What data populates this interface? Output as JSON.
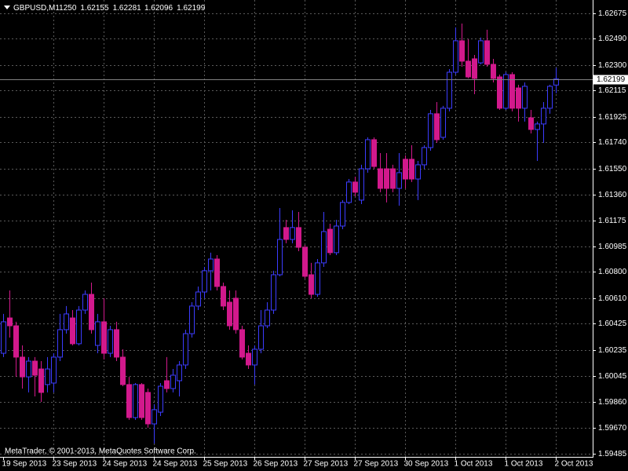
{
  "chart_data": {
    "type": "candlestick",
    "title": "GBPUSD,M11250",
    "footer": "MetaTrader, © 2001-2013, MetaQuotes Software Corp.",
    "bull_color": "#3c3cff",
    "bear_color": "#d2198c",
    "grid": true,
    "ylim": [
      1.5946,
      1.62743
    ],
    "yticks": [
      1.62675,
      {
        "value": 1.6249,
        "label": "1.62490"
      },
      {
        "value": 1.623,
        "label": "1.62300"
      },
      1.62115,
      1.61925,
      {
        "value": 1.6174,
        "label": "1.61740"
      },
      {
        "value": 1.6155,
        "label": "1.61550"
      },
      {
        "value": 1.6136,
        "label": "1.61360"
      },
      1.61175,
      1.60985,
      {
        "value": 1.608,
        "label": "1.60800"
      },
      {
        "value": 1.6061,
        "label": "1.60610"
      },
      1.60425,
      1.60235,
      1.60045,
      {
        "value": 1.5986,
        "label": "1.59860"
      },
      {
        "value": 1.5967,
        "label": "1.59670"
      },
      1.59485
    ],
    "categories": [
      "19 Sep 2013",
      null,
      null,
      null,
      null,
      null,
      null,
      null,
      "23 Sep 2013",
      null,
      null,
      null,
      null,
      null,
      null,
      null,
      "24 Sep 2013",
      null,
      null,
      null,
      null,
      null,
      null,
      null,
      "24 Sep 2013",
      null,
      null,
      null,
      null,
      null,
      null,
      null,
      "25 Sep 2013",
      null,
      null,
      null,
      null,
      null,
      null,
      null,
      "26 Sep 2013",
      null,
      null,
      null,
      null,
      null,
      null,
      null,
      "27 Sep 2013",
      null,
      null,
      null,
      null,
      null,
      null,
      null,
      "27 Sep 2013",
      null,
      null,
      null,
      null,
      null,
      null,
      null,
      "30 Sep 2013",
      null,
      null,
      null,
      null,
      null,
      null,
      null,
      "1 Oct 2013",
      null,
      null,
      null,
      null,
      null,
      null,
      null,
      "1 Oct 2013",
      null,
      null,
      null,
      null,
      null,
      null,
      null,
      "2 Oct 2013"
    ],
    "open": [
      1.60211,
      1.60467,
      1.6041,
      1.60183,
      1.6004,
      1.60154,
      1.60097,
      1.59984,
      1.59995,
      1.60183,
      1.60382,
      1.60467,
      1.6028,
      1.60524,
      1.60638,
      1.60268,
      1.60439,
      1.60211,
      1.60382,
      1.60183,
      1.59984,
      1.59745,
      1.59984,
      1.59927,
      1.59699,
      1.59784,
      1.60012,
      1.59955,
      1.60012,
      1.60126,
      1.60353,
      1.60553,
      1.60655,
      1.60809,
      1.60894,
      1.60695,
      1.60581,
      1.6061,
      1.60382,
      1.60211,
      1.60126,
      1.6024,
      1.6041,
      1.60524,
      1.6078,
      1.61122,
      1.61036,
      1.61122,
      1.60979,
      1.6078,
      1.60638,
      1.60866,
      1.6111,
      1.6094,
      1.61133,
      1.61304,
      1.61452,
      1.61321,
      1.61548,
      1.61759,
      1.61548,
      1.61548,
      1.61548,
      1.61406,
      1.61617,
      1.61617,
      1.61474,
      1.61577,
      1.61702,
      1.61947,
      1.61776,
      1.61987,
      1.62248,
      1.62476,
      1.62328,
      1.62345,
      1.62316,
      1.62476,
      1.62305,
      1.62214,
      1.61987,
      1.62231,
      1.62134,
      1.61987,
      1.61918,
      1.61833,
      1.61873,
      1.61987,
      1.62155
    ],
    "high": [
      1.60496,
      1.60666,
      1.60439,
      1.60268,
      1.60183,
      1.60183,
      1.60154,
      1.60183,
      1.60211,
      1.60496,
      1.60553,
      1.60524,
      1.60553,
      1.60666,
      1.60723,
      1.60496,
      1.6061,
      1.6041,
      1.60439,
      1.6024,
      1.6004,
      1.59995,
      1.59995,
      1.59955,
      1.59841,
      1.59995,
      1.60183,
      1.60097,
      1.60154,
      1.60382,
      1.60581,
      1.60695,
      1.60837,
      1.6094,
      1.60922,
      1.60723,
      1.60666,
      1.60666,
      1.6041,
      1.60268,
      1.60268,
      1.60524,
      1.60581,
      1.60809,
      1.61264,
      1.61178,
      1.61247,
      1.61235,
      1.60996,
      1.60866,
      1.60894,
      1.61235,
      1.6115,
      1.61178,
      1.61321,
      1.61474,
      1.61491,
      1.61577,
      1.61776,
      1.61776,
      1.61662,
      1.61662,
      1.61577,
      1.61662,
      1.61645,
      1.61719,
      1.61605,
      1.61719,
      1.61975,
      1.62032,
      1.62004,
      1.62271,
      1.62573,
      1.62601,
      1.62487,
      1.62373,
      1.62499,
      1.62556,
      1.62345,
      1.62231,
      1.62248,
      1.62248,
      1.62157,
      1.62174,
      1.61975,
      1.6189,
      1.62032,
      1.62157,
      1.62281
    ],
    "low": [
      1.60183,
      1.60325,
      1.6004,
      1.59955,
      1.59927,
      1.59898,
      1.59858,
      1.59927,
      1.59927,
      1.60154,
      1.60353,
      1.60268,
      1.60268,
      1.60496,
      1.60353,
      1.60211,
      1.60166,
      1.60183,
      1.60154,
      1.59972,
      1.59728,
      1.59728,
      1.59728,
      1.59671,
      1.59557,
      1.59756,
      1.59927,
      1.59927,
      1.59898,
      1.60097,
      1.60325,
      1.60524,
      1.6061,
      1.60666,
      1.60666,
      1.60524,
      1.60382,
      1.60353,
      1.60166,
      1.60097,
      1.59984,
      1.60211,
      1.60393,
      1.60496,
      1.60769,
      1.61008,
      1.61008,
      1.60951,
      1.60752,
      1.6061,
      1.60621,
      1.60837,
      1.60922,
      1.60922,
      1.6111,
      1.61292,
      1.61349,
      1.61292,
      1.6152,
      1.61548,
      1.61378,
      1.61304,
      1.61378,
      1.61281,
      1.61406,
      1.61452,
      1.61321,
      1.61548,
      1.61679,
      1.61736,
      1.61759,
      1.61964,
      1.62231,
      1.62288,
      1.62203,
      1.62089,
      1.62305,
      1.62288,
      1.62174,
      1.61975,
      1.61975,
      1.61964,
      1.6189,
      1.6189,
      1.61804,
      1.61605,
      1.61736,
      1.61947,
      1.62096
    ],
    "close": [
      1.60439,
      1.6041,
      1.60183,
      1.6004,
      1.60154,
      1.60052,
      1.59927,
      1.60097,
      1.60183,
      1.60382,
      1.60496,
      1.6028,
      1.60524,
      1.60638,
      1.60382,
      1.60439,
      1.60211,
      1.60382,
      1.60183,
      1.59984,
      1.59745,
      1.59984,
      1.59745,
      1.59699,
      1.59802,
      1.59972,
      1.59955,
      1.60052,
      1.60126,
      1.60353,
      1.60553,
      1.60655,
      1.60809,
      1.60894,
      1.60695,
      1.60553,
      1.6041,
      1.60382,
      1.60183,
      1.60126,
      1.6024,
      1.6041,
      1.60524,
      1.6078,
      1.61036,
      1.61036,
      1.61122,
      1.60979,
      1.60769,
      1.60638,
      1.60866,
      1.61093,
      1.6094,
      1.61133,
      1.61304,
      1.61452,
      1.61378,
      1.61548,
      1.61759,
      1.61565,
      1.61406,
      1.61406,
      1.61406,
      1.6152,
      1.61474,
      1.61474,
      1.61577,
      1.61702,
      1.61947,
      1.61759,
      1.61987,
      1.62248,
      1.62476,
      1.62328,
      1.62214,
      1.62203,
      1.62476,
      1.62305,
      1.62203,
      1.61987,
      1.62231,
      1.61987,
      1.61987,
      1.62146,
      1.61833,
      1.61873,
      1.61987,
      1.62146,
      1.62199
    ]
  }
}
